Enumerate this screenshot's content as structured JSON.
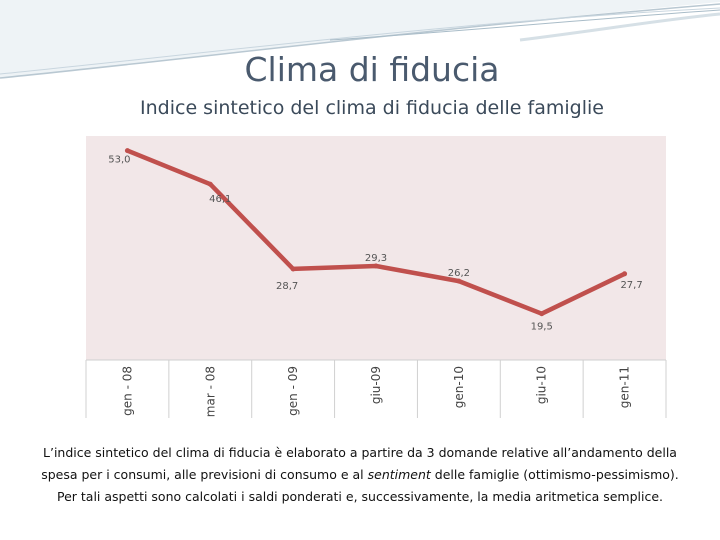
{
  "slide": {
    "title": "Clima di fiducia",
    "subtitle": "Indice sintetico del clima di fiducia delle famiglie",
    "caption": {
      "part1": "L’indice sintetico del clima di fiducia è elaborato a partire da 3 domande relative  all’andamento della spesa per i consumi, alle previsioni di consumo e al ",
      "sentiment": "sentiment",
      "part2": "  delle famiglie (ottimismo-pessimismo). Per tali aspetti sono calcolati i saldi ponderati e, successivamente, la media aritmetica semplice."
    }
  },
  "colors": {
    "plot_background": "#f2e7e8",
    "line": "#c0504d",
    "title": "#4a5a6e",
    "decor": "#c9d6df"
  },
  "chart_data": {
    "type": "line",
    "categories": [
      "gen - 08",
      "mar - 08",
      "gen - 09",
      "giu-09",
      "gen-10",
      "giu-10",
      "gen-11"
    ],
    "series": [
      {
        "values": [
          53.0,
          46.1,
          28.7,
          29.3,
          26.2,
          19.5,
          27.7
        ],
        "labels": [
          "53,0",
          "46,1",
          "28,7",
          "29,3",
          "26,2",
          "19,5",
          "27,7"
        ]
      }
    ],
    "ylim": [
      10,
      56
    ],
    "grid": false,
    "legend": false
  }
}
